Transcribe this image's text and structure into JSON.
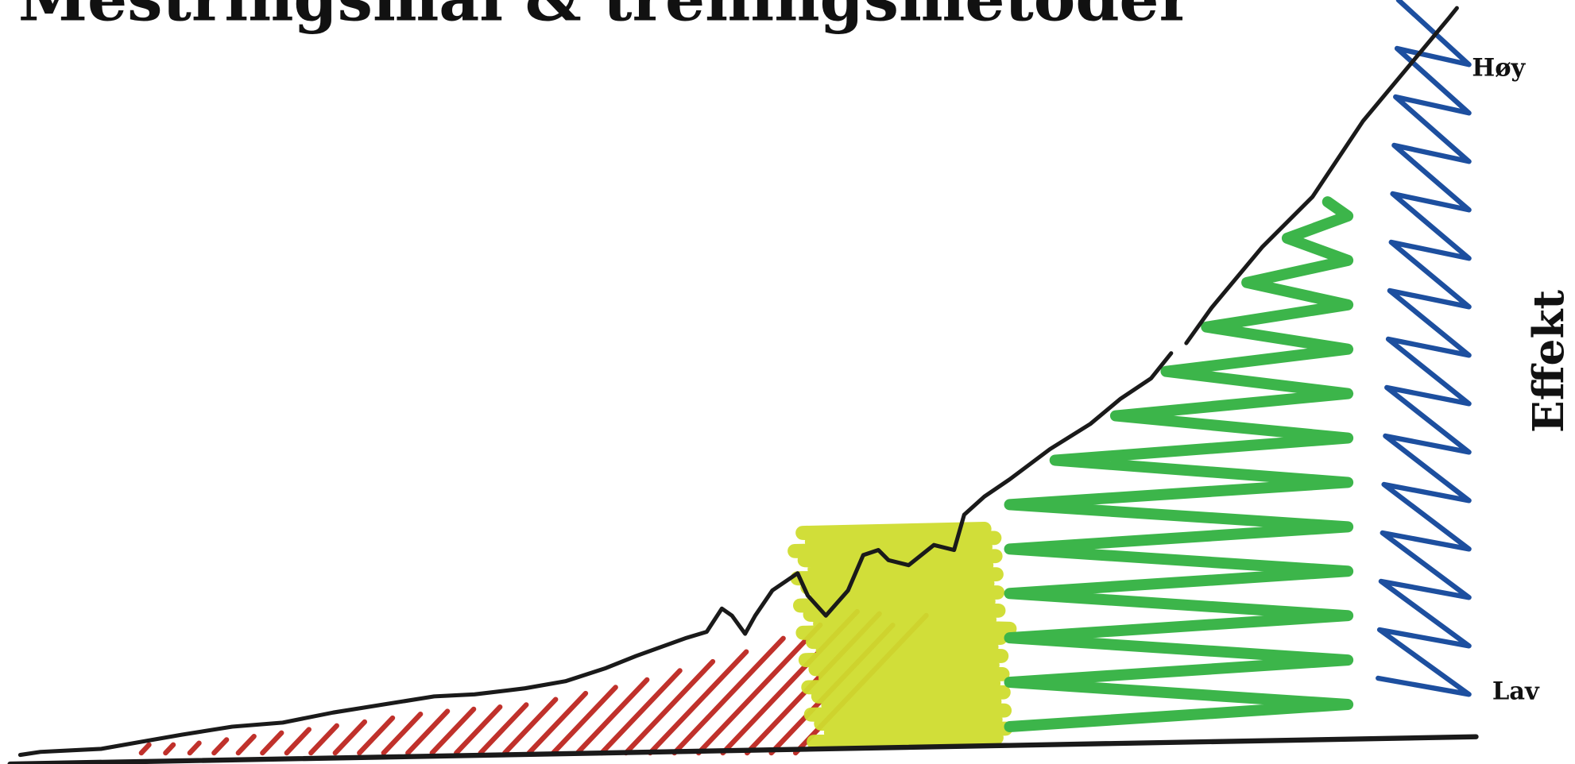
{
  "title": "Mestringsmål & treningsmetoder",
  "axis": {
    "label": "Effekt",
    "high": "Høy",
    "low": "Lav"
  }
}
